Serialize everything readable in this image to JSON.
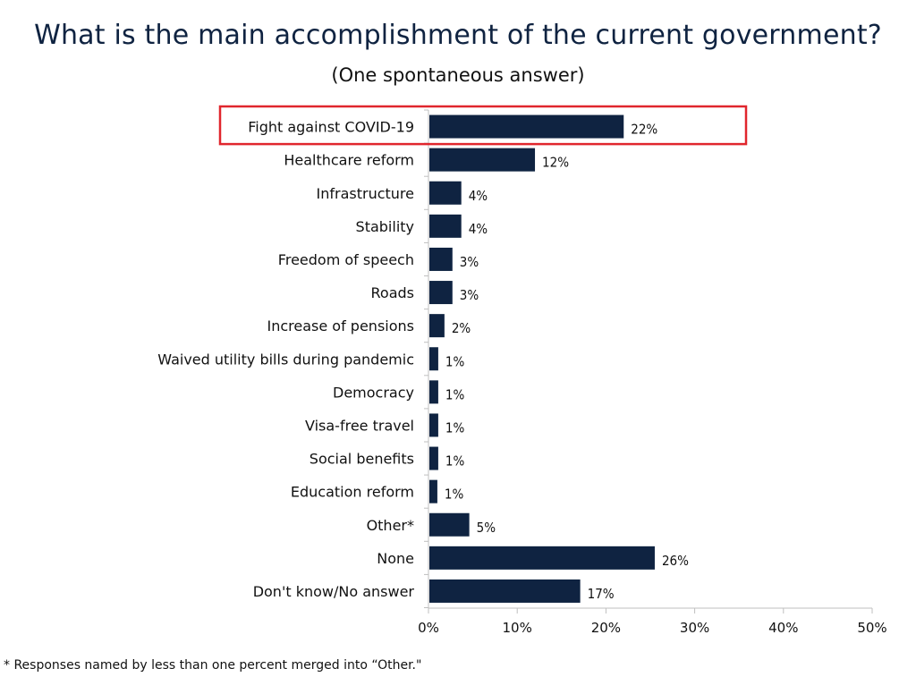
{
  "chart_data": {
    "type": "bar",
    "orientation": "horizontal",
    "title": "What is the main accomplishment of the current government?",
    "subtitle": "(One spontaneous answer)",
    "categories": [
      "Fight against COVID-19",
      "Healthcare reform",
      "Infrastructure",
      "Stability",
      "Freedom of speech",
      "Roads",
      "Increase of pensions",
      "Waived utility bills during pandemic",
      "Democracy",
      "Visa-free travel",
      "Social benefits",
      "Education reform",
      "Other*",
      "None",
      "Don't know/No answer"
    ],
    "values": [
      22,
      12,
      4,
      4,
      3,
      3,
      2,
      1,
      1,
      1,
      1,
      1,
      5,
      26,
      17
    ],
    "value_labels": [
      "22%",
      "12%",
      "4%",
      "4%",
      "3%",
      "3%",
      "2%",
      "1%",
      "1%",
      "1%",
      "1%",
      "1%",
      "5%",
      "26%",
      "17%"
    ],
    "bar_lengths": [
      22,
      12,
      3.7,
      3.7,
      2.7,
      2.7,
      1.8,
      1.1,
      1.1,
      1.1,
      1.1,
      1.0,
      4.6,
      25.5,
      17.1
    ],
    "xlim": [
      0,
      50
    ],
    "xticks": [
      0,
      10,
      20,
      30,
      40,
      50
    ],
    "xtick_labels": [
      "0%",
      "10%",
      "20%",
      "30%",
      "40%",
      "50%"
    ],
    "xlabel": "",
    "ylabel": "",
    "grid": false,
    "highlighted_category": "Fight against COVID-19",
    "colors": {
      "bar": "#0f2341",
      "highlight_box": "#e0262d",
      "axis": "#bfbfbf"
    },
    "footnote": "* Responses named by less than one percent merged into “Other.\""
  }
}
